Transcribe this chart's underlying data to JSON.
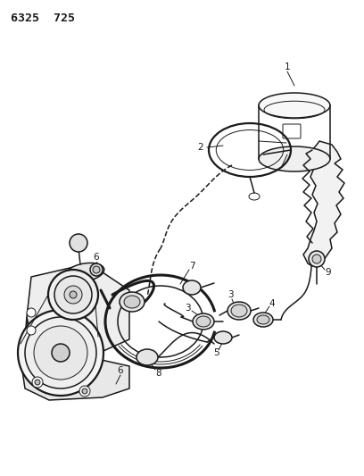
{
  "title": "6325  725",
  "bg_color": "#ffffff",
  "line_color": "#1a1a1a",
  "figsize": [
    4.08,
    5.33
  ],
  "dpi": 100,
  "title_fontsize": 9.5,
  "label_fontsize": 7.5,
  "lw_thin": 0.7,
  "lw_med": 1.1,
  "lw_thick": 1.6,
  "lw_hose": 2.2
}
